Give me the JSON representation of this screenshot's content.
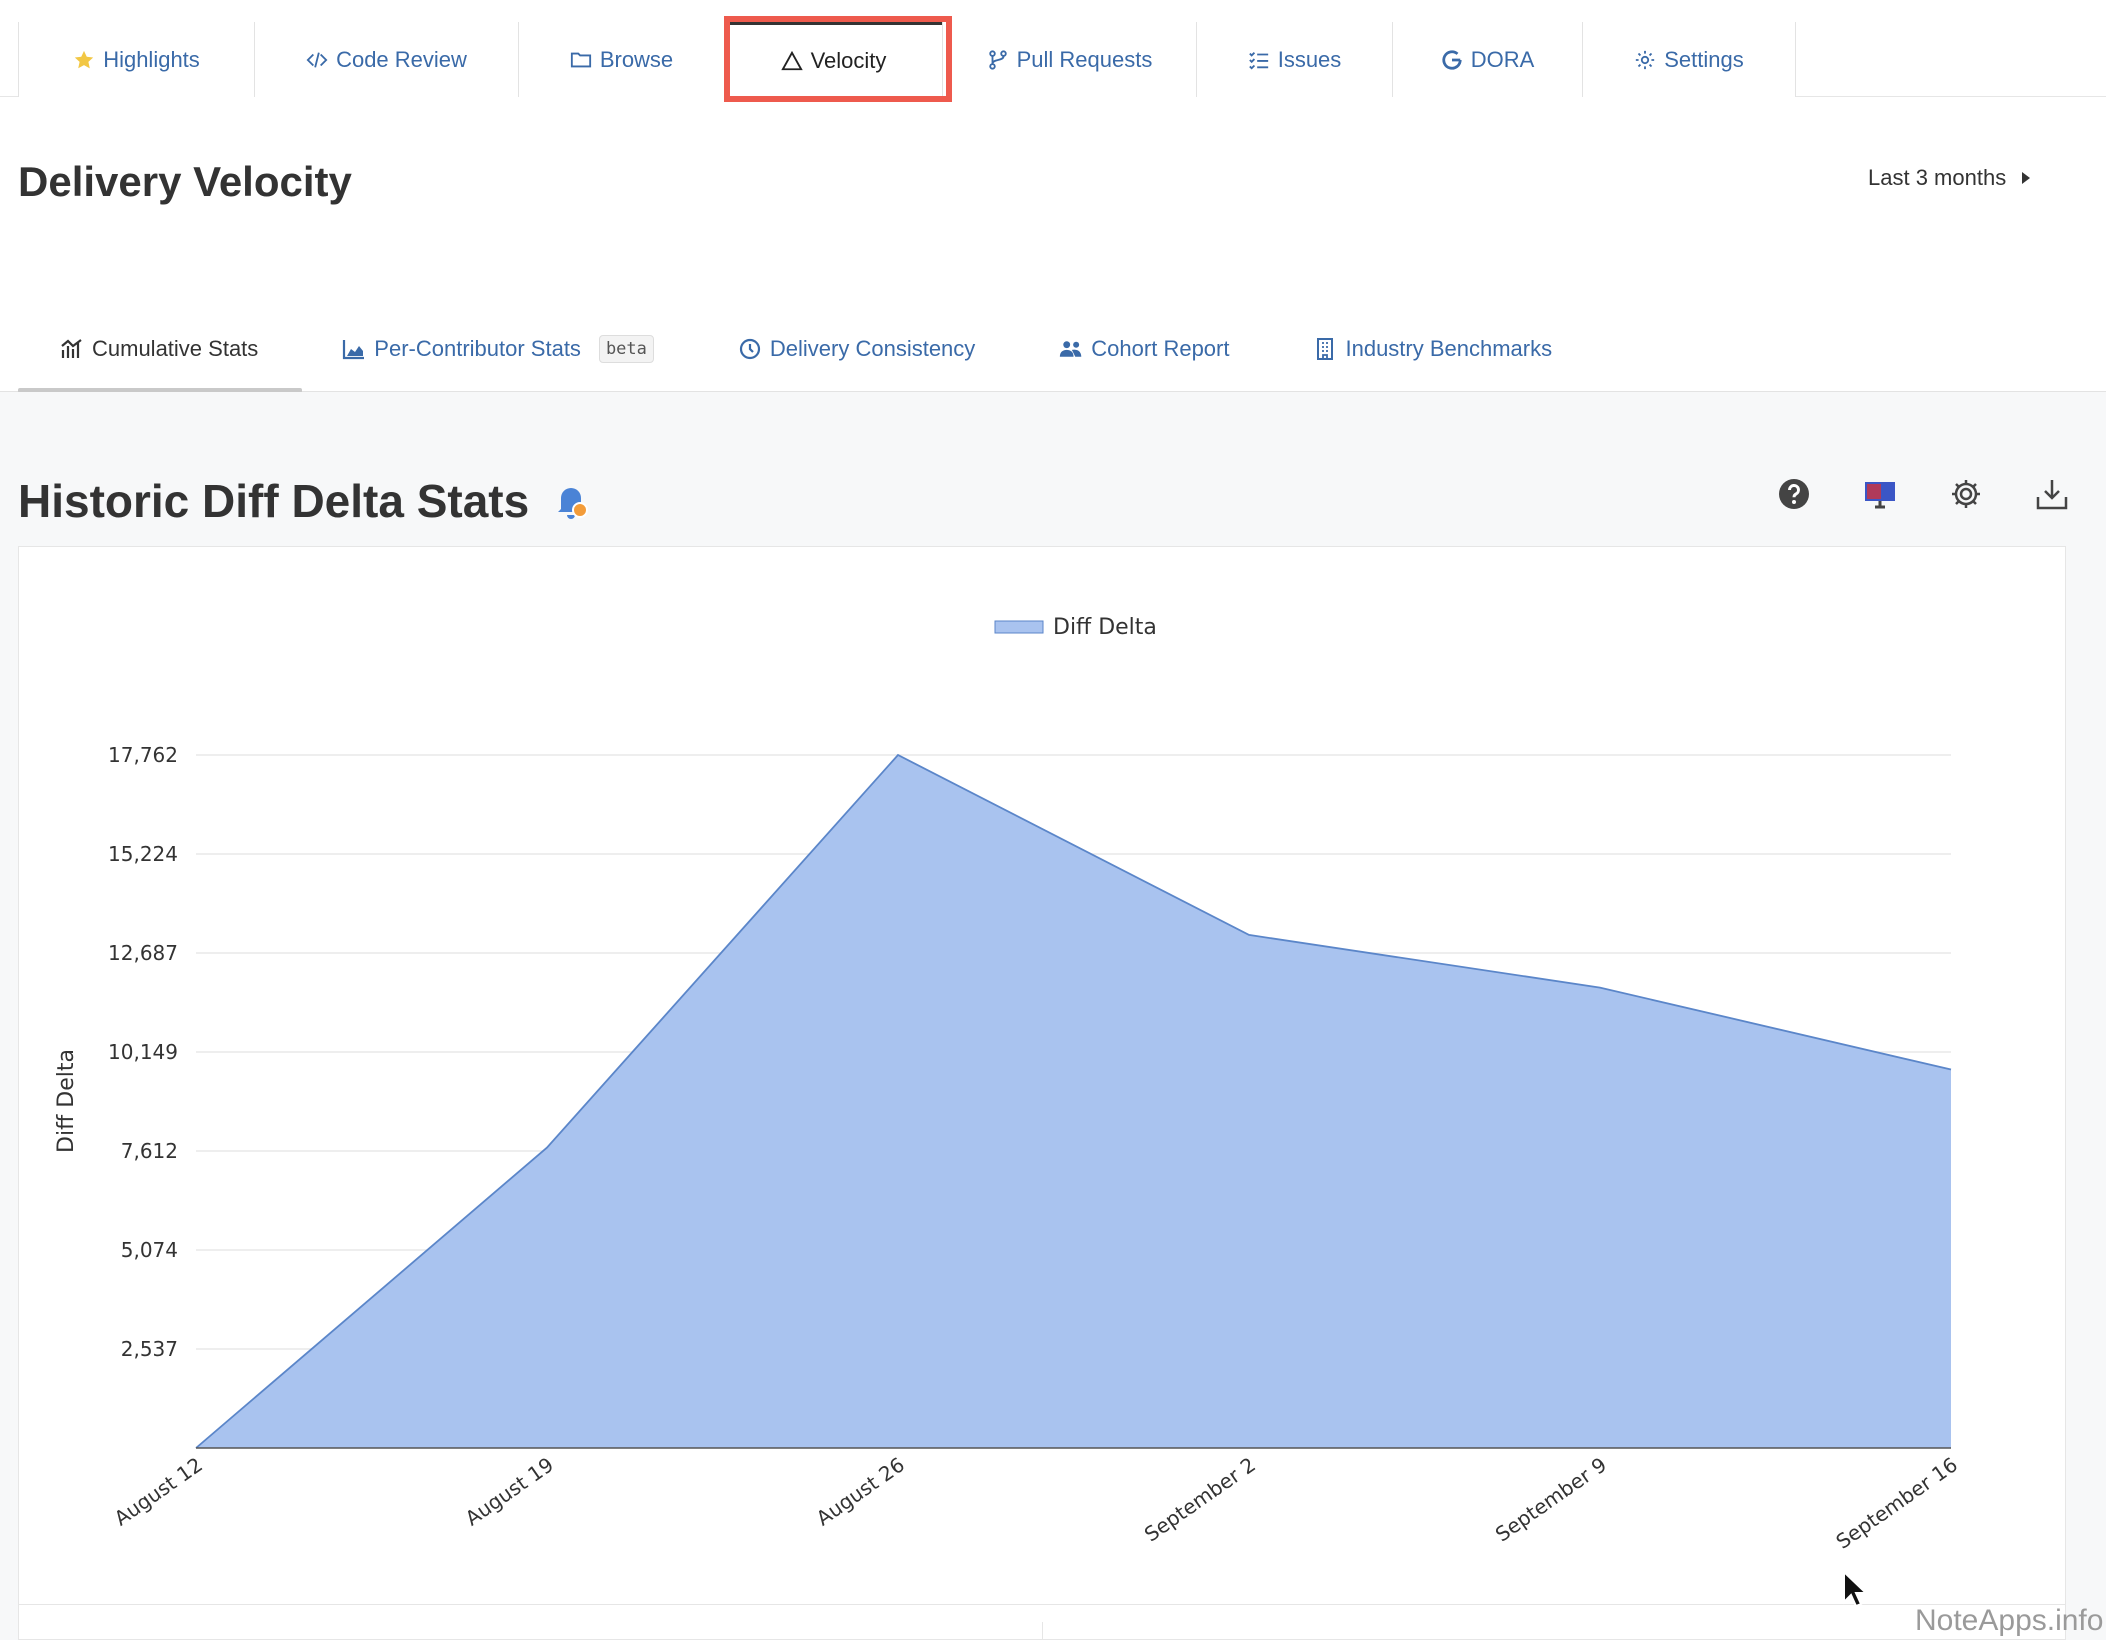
{
  "nav": {
    "tabs": [
      {
        "label": "Highlights",
        "icon": "star-icon"
      },
      {
        "label": "Code Review",
        "icon": "code-icon"
      },
      {
        "label": "Browse",
        "icon": "folder-icon"
      },
      {
        "label": "Velocity",
        "icon": "triangle-icon",
        "active": true
      },
      {
        "label": "Pull Requests",
        "icon": "branch-icon"
      },
      {
        "label": "Issues",
        "icon": "list-check-icon"
      },
      {
        "label": "DORA",
        "icon": "google-icon"
      },
      {
        "label": "Settings",
        "icon": "gear-icon"
      }
    ]
  },
  "header": {
    "title": "Delivery Velocity",
    "range_label": "Last 3 months"
  },
  "subtabs": [
    {
      "label": "Cumulative Stats",
      "icon": "chart-icon",
      "active": true
    },
    {
      "label": "Per-Contributor Stats",
      "icon": "area-chart-icon",
      "badge": "beta"
    },
    {
      "label": "Delivery Consistency",
      "icon": "clock-icon"
    },
    {
      "label": "Cohort Report",
      "icon": "users-icon"
    },
    {
      "label": "Industry Benchmarks",
      "icon": "building-icon"
    }
  ],
  "section": {
    "title": "Historic Diff Delta Stats"
  },
  "colors": {
    "accent": "#3a6aa8",
    "highlight_box": "#ee5a4d",
    "area_fill": "#a9c3ef",
    "area_stroke": "#5b86c9"
  },
  "chart_data": {
    "type": "area",
    "legend": "Diff Delta",
    "ylabel": "Diff Delta",
    "xlabel": "",
    "categories": [
      "August 12",
      "August 19",
      "August 26",
      "September  2",
      "September  9",
      "September 16"
    ],
    "series": [
      {
        "name": "Diff Delta",
        "values": [
          0,
          7700,
          17762,
          13150,
          11800,
          9700
        ]
      }
    ],
    "yticks": [
      "2,537",
      "5,074",
      "7,612",
      "10,149",
      "12,687",
      "15,224",
      "17,762"
    ],
    "ylim": [
      0,
      17762
    ],
    "grid": true,
    "legend_position": "top-center"
  },
  "watermark": "NoteApps.info"
}
